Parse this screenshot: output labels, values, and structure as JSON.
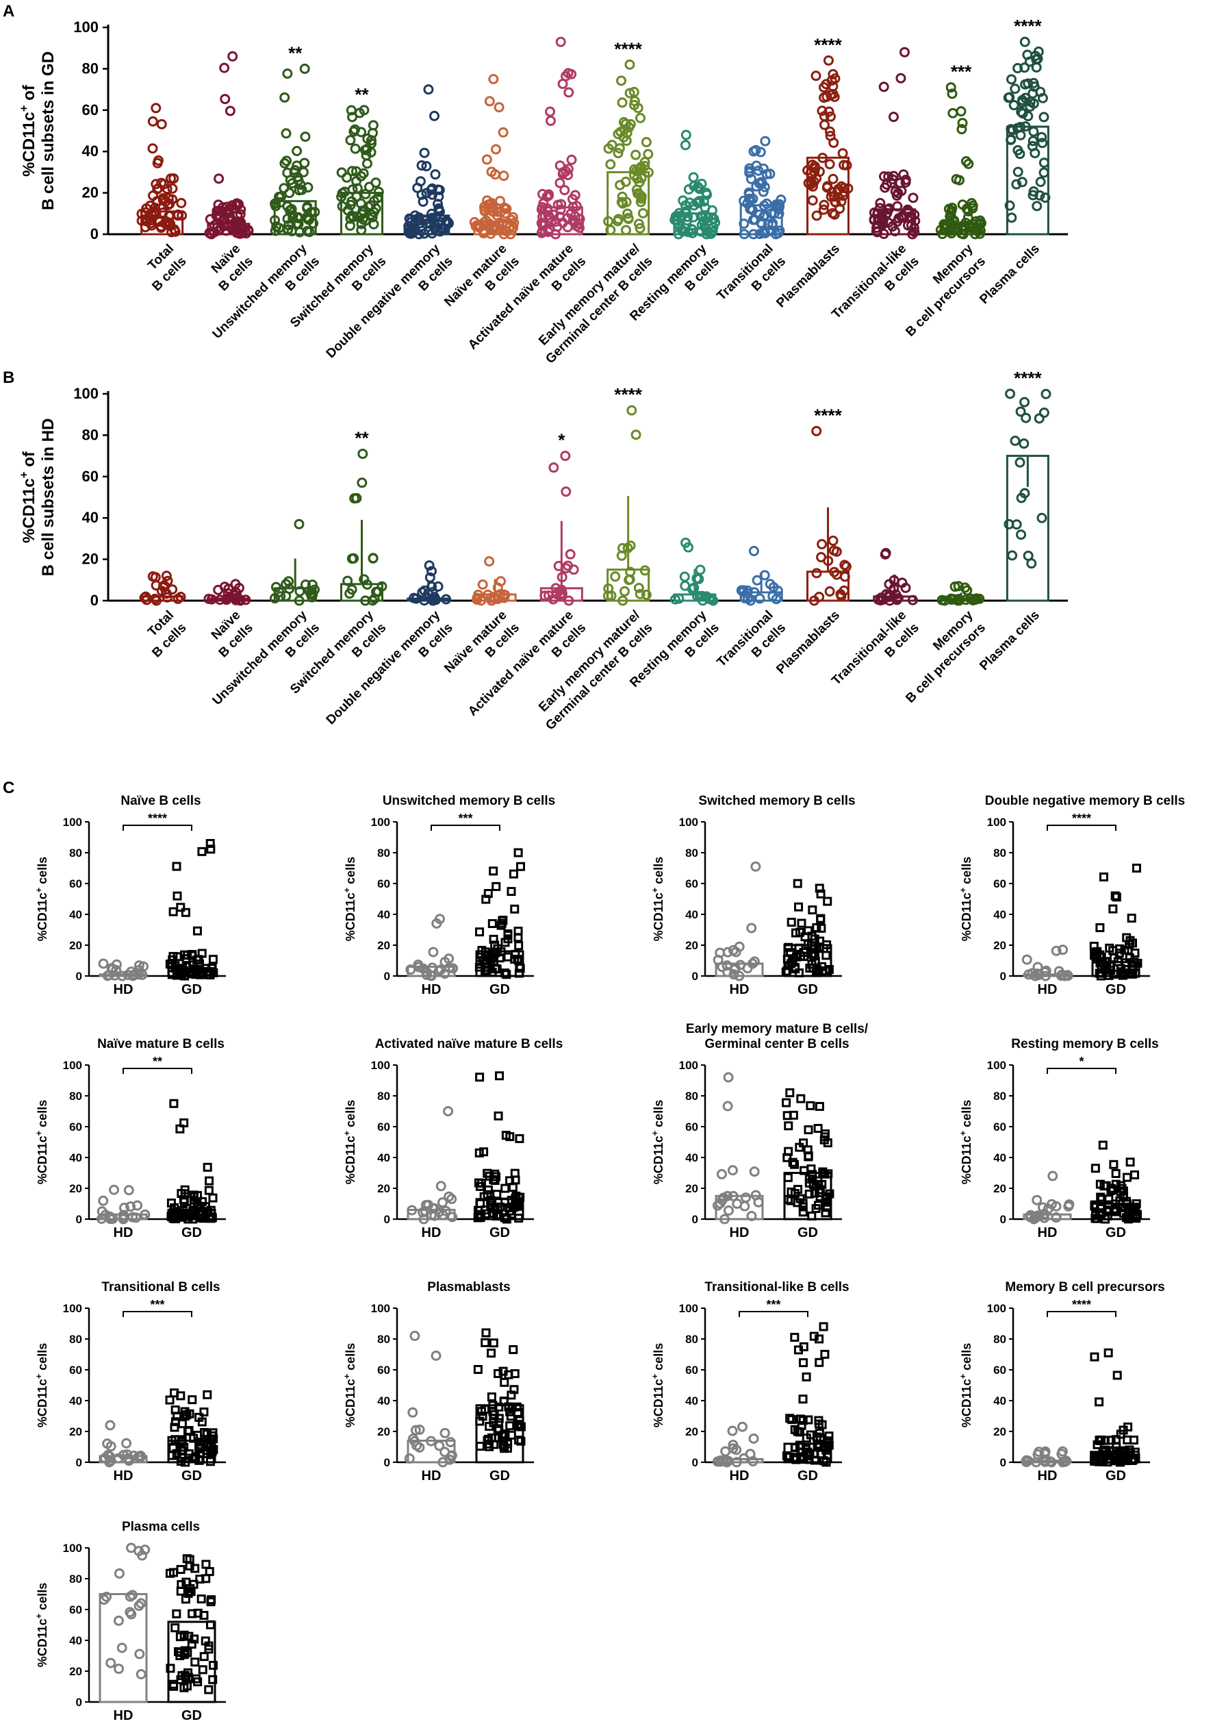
{
  "chart_data": [
    {
      "panel": "A",
      "type": "scatter-bar",
      "title": "",
      "ylabel_lines": [
        "%CD11c+ of",
        "B cell subsets in GD"
      ],
      "ylim": [
        0,
        100
      ],
      "yticks": [
        0,
        20,
        40,
        60,
        80,
        100
      ],
      "categories": [
        {
          "lines": [
            "Total",
            "B cells"
          ],
          "color": "#8b1a10",
          "median": 11,
          "spread": [
            1,
            61
          ],
          "n": 60,
          "bar": "box",
          "sig": ""
        },
        {
          "lines": [
            "Naïve",
            "B cells"
          ],
          "color": "#7a1530",
          "median": 5,
          "spread": [
            0,
            86
          ],
          "n": 60,
          "bar": "box",
          "sig": ""
        },
        {
          "lines": [
            "Unswitched memory",
            "B cells"
          ],
          "color": "#2f5a1a",
          "median": 16,
          "spread": [
            1,
            80
          ],
          "n": 60,
          "bar": "box",
          "sig": "**"
        },
        {
          "lines": [
            "Switched memory",
            "B cells"
          ],
          "color": "#2f5a1a",
          "median": 20,
          "spread": [
            2,
            60
          ],
          "n": 60,
          "bar": "box",
          "sig": "**"
        },
        {
          "lines": [
            "Double negative memory",
            "B cells"
          ],
          "color": "#1f3a60",
          "median": 9,
          "spread": [
            0,
            70
          ],
          "n": 60,
          "bar": "box",
          "sig": ""
        },
        {
          "lines": [
            "Naïve mature",
            "B cells"
          ],
          "color": "#c8643a",
          "median": 6,
          "spread": [
            0,
            75
          ],
          "n": 60,
          "bar": "box",
          "sig": ""
        },
        {
          "lines": [
            "Activated naïve mature",
            "B cells"
          ],
          "color": "#b03a65",
          "median": 13,
          "spread": [
            0,
            93
          ],
          "n": 60,
          "bar": "box",
          "sig": ""
        },
        {
          "lines": [
            "Early memory mature/",
            "Germinal center B cells"
          ],
          "color": "#6a8a28",
          "median": 30,
          "spread": [
            2,
            82
          ],
          "n": 60,
          "bar": "box",
          "sig": "****"
        },
        {
          "lines": [
            "Resting memory",
            "B cells"
          ],
          "color": "#2a8a70",
          "median": 10,
          "spread": [
            0,
            48
          ],
          "n": 60,
          "bar": "box",
          "sig": ""
        },
        {
          "lines": [
            "Transitional",
            "B cells"
          ],
          "color": "#3a6ea8",
          "median": 14,
          "spread": [
            0,
            45
          ],
          "n": 60,
          "bar": "box",
          "sig": ""
        },
        {
          "lines": [
            "Plasmablasts",
            ""
          ],
          "color": "#8b2010",
          "median": 37,
          "spread": [
            9,
            84
          ],
          "n": 60,
          "bar": "box",
          "sig": "****"
        },
        {
          "lines": [
            "Transitional-like",
            "B cells"
          ],
          "color": "#6a1530",
          "median": 12,
          "spread": [
            0,
            88
          ],
          "n": 60,
          "bar": "box",
          "sig": ""
        },
        {
          "lines": [
            "Memory",
            "B cell precursors"
          ],
          "color": "#2f5a10",
          "median": 5,
          "spread": [
            0,
            71
          ],
          "n": 60,
          "bar": "box",
          "sig": "***"
        },
        {
          "lines": [
            "Plasma cells",
            ""
          ],
          "color": "#1f5040",
          "median": 52,
          "spread": [
            8,
            93
          ],
          "n": 60,
          "bar": "box",
          "sig": "****"
        }
      ]
    },
    {
      "panel": "B",
      "type": "scatter-bar",
      "title": "",
      "ylabel_lines": [
        "%CD11c+ of",
        "B cell subsets in HD"
      ],
      "ylim": [
        0,
        100
      ],
      "yticks": [
        0,
        20,
        40,
        60,
        80,
        100
      ],
      "categories": [
        {
          "lines": [
            "Total",
            "B cells"
          ],
          "color": "#8b1a10",
          "median": 2,
          "spread": [
            0,
            12
          ],
          "n": 17,
          "bar": "box",
          "sig": ""
        },
        {
          "lines": [
            "Naïve",
            "B cells"
          ],
          "color": "#7a1530",
          "median": 1,
          "spread": [
            0,
            8
          ],
          "n": 17,
          "bar": "box",
          "sig": ""
        },
        {
          "lines": [
            "Unswitched memory",
            "B cells"
          ],
          "color": "#2f5a1a",
          "median": 6,
          "spread": [
            0,
            37
          ],
          "n": 17,
          "bar": "box",
          "sig": ""
        },
        {
          "lines": [
            "Switched memory",
            "B cells"
          ],
          "color": "#2f5a1a",
          "median": 8,
          "spread": [
            0,
            71
          ],
          "n": 17,
          "bar": "box",
          "sig": "**"
        },
        {
          "lines": [
            "Double negative memory",
            "B cells"
          ],
          "color": "#1f3a60",
          "median": 1,
          "spread": [
            0,
            17
          ],
          "n": 17,
          "bar": "box",
          "sig": ""
        },
        {
          "lines": [
            "Naïve mature",
            "B cells"
          ],
          "color": "#c8643a",
          "median": 3,
          "spread": [
            0,
            19
          ],
          "n": 17,
          "bar": "box",
          "sig": ""
        },
        {
          "lines": [
            "Activated naïve mature",
            "B cells"
          ],
          "color": "#b03a65",
          "median": 6,
          "spread": [
            0,
            70
          ],
          "n": 17,
          "bar": "box",
          "sig": "*"
        },
        {
          "lines": [
            "Early memory mature/",
            "Germinal center B cells"
          ],
          "color": "#6a8a28",
          "median": 15,
          "spread": [
            0,
            92
          ],
          "n": 17,
          "bar": "box",
          "sig": "****"
        },
        {
          "lines": [
            "Resting memory",
            "B cells"
          ],
          "color": "#2a8a70",
          "median": 3,
          "spread": [
            0,
            28
          ],
          "n": 17,
          "bar": "box",
          "sig": ""
        },
        {
          "lines": [
            "Transitional",
            "B cells"
          ],
          "color": "#3a6ea8",
          "median": 4,
          "spread": [
            0,
            24
          ],
          "n": 17,
          "bar": "box",
          "sig": ""
        },
        {
          "lines": [
            "Plasmablasts",
            ""
          ],
          "color": "#8b2010",
          "median": 14,
          "spread": [
            0,
            82
          ],
          "n": 17,
          "bar": "box",
          "sig": "****"
        },
        {
          "lines": [
            "Transitional-like",
            "B cells"
          ],
          "color": "#6a1530",
          "median": 2,
          "spread": [
            0,
            23
          ],
          "n": 17,
          "bar": "box",
          "sig": ""
        },
        {
          "lines": [
            "Memory",
            "B cell precursors"
          ],
          "color": "#2f5a10",
          "median": 1,
          "spread": [
            0,
            7
          ],
          "n": 17,
          "bar": "box",
          "sig": ""
        },
        {
          "lines": [
            "Plasma cells",
            ""
          ],
          "color": "#1f5040",
          "median": 70,
          "spread": [
            18,
            100
          ],
          "n": 17,
          "bar": "box",
          "sig": "****"
        }
      ]
    },
    {
      "panel": "C",
      "type": "scatter-bar-pairs",
      "ylabel": "%CD11c+ cells",
      "ylim": [
        0,
        100
      ],
      "yticks": [
        0,
        20,
        40,
        60,
        80,
        100
      ],
      "groups": [
        "HD",
        "GD"
      ],
      "hd_color": "#808080",
      "gd_color": "#000000",
      "plots": [
        {
          "title": [
            "Naïve B cells"
          ],
          "hd": {
            "median": 1,
            "spread": [
              0,
              8
            ]
          },
          "gd": {
            "median": 5,
            "spread": [
              0,
              86
            ]
          },
          "sig": "****"
        },
        {
          "title": [
            "Unswitched memory B cells"
          ],
          "hd": {
            "median": 6,
            "spread": [
              0,
              37
            ]
          },
          "gd": {
            "median": 16,
            "spread": [
              1,
              80
            ]
          },
          "sig": "***"
        },
        {
          "title": [
            "Switched memory B cells"
          ],
          "hd": {
            "median": 8,
            "spread": [
              0,
              71
            ]
          },
          "gd": {
            "median": 20,
            "spread": [
              2,
              60
            ]
          },
          "sig": ""
        },
        {
          "title": [
            "Double negative memory B cells"
          ],
          "hd": {
            "median": 1,
            "spread": [
              0,
              17
            ]
          },
          "gd": {
            "median": 9,
            "spread": [
              0,
              70
            ]
          },
          "sig": "****"
        },
        {
          "title": [
            "Naïve mature B cells"
          ],
          "hd": {
            "median": 3,
            "spread": [
              0,
              19
            ]
          },
          "gd": {
            "median": 6,
            "spread": [
              0,
              75
            ]
          },
          "sig": "**"
        },
        {
          "title": [
            "Activated naïve mature B cells"
          ],
          "hd": {
            "median": 6,
            "spread": [
              0,
              70
            ]
          },
          "gd": {
            "median": 13,
            "spread": [
              0,
              93
            ]
          },
          "sig": ""
        },
        {
          "title": [
            "Early memory mature B cells/",
            "Germinal center B cells"
          ],
          "hd": {
            "median": 15,
            "spread": [
              0,
              92
            ]
          },
          "gd": {
            "median": 30,
            "spread": [
              2,
              82
            ]
          },
          "sig": ""
        },
        {
          "title": [
            "Resting memory B cells"
          ],
          "hd": {
            "median": 3,
            "spread": [
              0,
              28
            ]
          },
          "gd": {
            "median": 10,
            "spread": [
              0,
              48
            ]
          },
          "sig": "*"
        },
        {
          "title": [
            "Transitional B cells"
          ],
          "hd": {
            "median": 4,
            "spread": [
              0,
              24
            ]
          },
          "gd": {
            "median": 14,
            "spread": [
              0,
              45
            ]
          },
          "sig": "***"
        },
        {
          "title": [
            "Plasmablasts"
          ],
          "hd": {
            "median": 14,
            "spread": [
              0,
              82
            ]
          },
          "gd": {
            "median": 37,
            "spread": [
              9,
              84
            ]
          },
          "sig": ""
        },
        {
          "title": [
            "Transitional-like B cells"
          ],
          "hd": {
            "median": 2,
            "spread": [
              0,
              23
            ]
          },
          "gd": {
            "median": 12,
            "spread": [
              0,
              88
            ]
          },
          "sig": "***"
        },
        {
          "title": [
            "Memory B cell precursors"
          ],
          "hd": {
            "median": 1,
            "spread": [
              0,
              7
            ]
          },
          "gd": {
            "median": 5,
            "spread": [
              0,
              71
            ]
          },
          "sig": "****"
        },
        {
          "title": [
            "Plasma cells"
          ],
          "hd": {
            "median": 70,
            "spread": [
              18,
              100
            ]
          },
          "gd": {
            "median": 52,
            "spread": [
              8,
              93
            ]
          },
          "sig": ""
        }
      ]
    }
  ]
}
